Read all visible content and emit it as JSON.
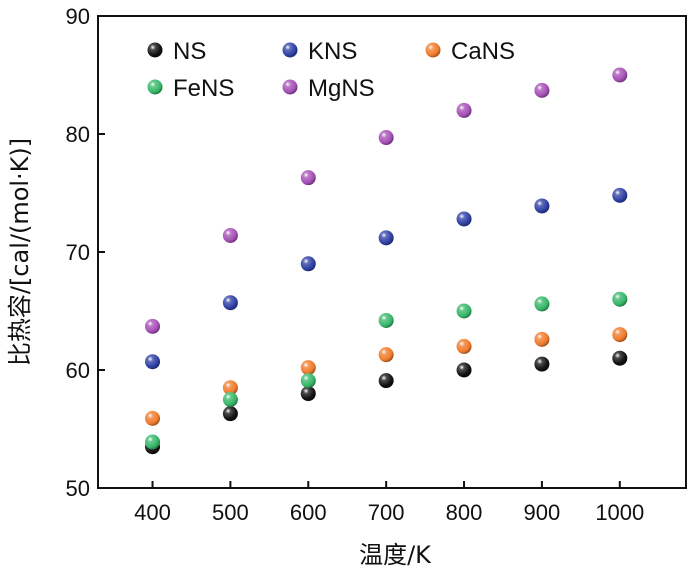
{
  "chart_data": {
    "type": "scatter",
    "title": "",
    "xlabel": "温度/K",
    "ylabel": "比热容/[cal/(mol·K)]",
    "x": [
      400,
      500,
      600,
      700,
      800,
      900,
      1000
    ],
    "xlim": [
      330,
      1085
    ],
    "ylim": [
      50,
      90
    ],
    "xticks": [
      400,
      500,
      600,
      700,
      800,
      900,
      1000
    ],
    "yticks": [
      50,
      60,
      70,
      80,
      90
    ],
    "grid": false,
    "legend_position": "top",
    "series": [
      {
        "name": "NS",
        "color": "#111111",
        "values": [
          53.5,
          56.3,
          58.0,
          59.1,
          60.0,
          60.5,
          61.0
        ]
      },
      {
        "name": "KNS",
        "color": "#2e3fa4",
        "values": [
          60.7,
          65.7,
          69.0,
          71.2,
          72.8,
          73.9,
          74.8
        ]
      },
      {
        "name": "CaNS",
        "color": "#f07a2a",
        "values": [
          55.9,
          58.5,
          60.2,
          61.3,
          62.0,
          62.6,
          63.0
        ]
      },
      {
        "name": "FeNS",
        "color": "#35b768",
        "values": [
          53.9,
          57.5,
          59.1,
          64.2,
          65.0,
          65.6,
          66.0
        ]
      },
      {
        "name": "MgNS",
        "color": "#a54fb6",
        "values": [
          63.7,
          71.4,
          76.3,
          79.7,
          82.0,
          83.7,
          85.0
        ]
      }
    ]
  }
}
